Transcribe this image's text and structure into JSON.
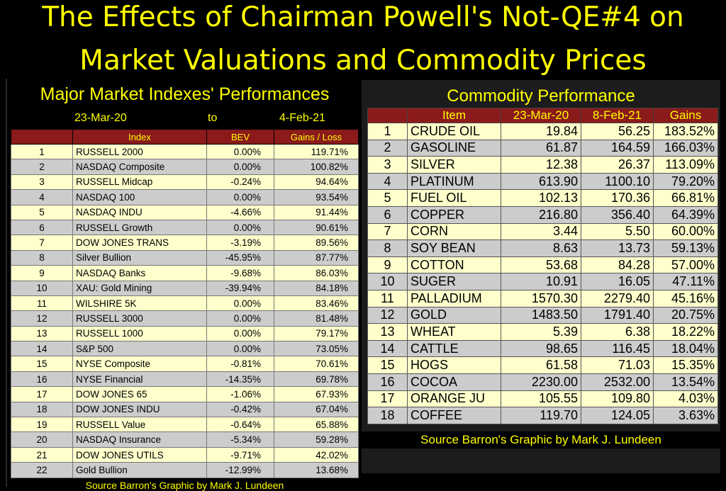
{
  "title": {
    "line1": "The Effects of Chairman Powell's Not-QE#4 on",
    "line2": "Market Valuations and Commodity Prices"
  },
  "left": {
    "heading": "Major Market Indexes' Performances",
    "date_from": "23-Mar-20",
    "date_to_word": "to",
    "date_to": "4-Feb-21",
    "source": "Source Barron's  Graphic by Mark J. Lundeen"
  },
  "right": {
    "heading": "Commodity Performance",
    "source": "Source Barron's  Graphic by Mark J. Lundeen"
  },
  "chart_data": [
    {
      "type": "table",
      "title": "Major Market Indexes' Performances",
      "columns": [
        "",
        "Index",
        "BEV",
        "Gains / Loss"
      ],
      "rows": [
        [
          "1",
          "RUSSELL 2000",
          "0.00%",
          "119.71%"
        ],
        [
          "2",
          "NASDAQ Composite",
          "0.00%",
          "100.82%"
        ],
        [
          "3",
          "RUSSELL Midcap",
          "-0.24%",
          "94.64%"
        ],
        [
          "4",
          "NASDAQ 100",
          "0.00%",
          "93.54%"
        ],
        [
          "5",
          "NASDAQ INDU",
          "-4.66%",
          "91.44%"
        ],
        [
          "6",
          "RUSSELL Growth",
          "0.00%",
          "90.61%"
        ],
        [
          "7",
          "DOW JONES TRANS",
          "-3.19%",
          "89.56%"
        ],
        [
          "8",
          "Silver Bullion",
          "-45.95%",
          "87.77%"
        ],
        [
          "9",
          "NASDAQ Banks",
          "-9.68%",
          "86.03%"
        ],
        [
          "10",
          "XAU: Gold Mining",
          "-39.94%",
          "84.18%"
        ],
        [
          "11",
          "WILSHIRE 5K",
          "0.00%",
          "83.46%"
        ],
        [
          "12",
          "RUSSELL 3000",
          "0.00%",
          "81.48%"
        ],
        [
          "13",
          "RUSSELL 1000",
          "0.00%",
          "79.17%"
        ],
        [
          "14",
          "S&P 500",
          "0.00%",
          "73.05%"
        ],
        [
          "15",
          "NYSE Composite",
          "-0.81%",
          "70.61%"
        ],
        [
          "16",
          "NYSE Financial",
          "-14.35%",
          "69.78%"
        ],
        [
          "17",
          "DOW JONES 65",
          "-1.06%",
          "67.93%"
        ],
        [
          "18",
          "DOW JONES INDU",
          "-0.42%",
          "67.04%"
        ],
        [
          "19",
          "RUSSELL Value",
          "-0.64%",
          "65.88%"
        ],
        [
          "20",
          "NASDAQ Insurance",
          "-5.34%",
          "59.28%"
        ],
        [
          "21",
          "DOW JONES UTILS",
          "-9.71%",
          "42.02%"
        ],
        [
          "22",
          "Gold Bullion",
          "-12.99%",
          "13.68%"
        ]
      ]
    },
    {
      "type": "table",
      "title": "Commodity Performance",
      "columns": [
        "",
        "Item",
        "23-Mar-20",
        "8-Feb-21",
        "Gains"
      ],
      "rows": [
        [
          "1",
          "CRUDE OIL",
          "19.84",
          "56.25",
          "183.52%"
        ],
        [
          "2",
          "GASOLINE",
          "61.87",
          "164.59",
          "166.03%"
        ],
        [
          "3",
          "SILVER",
          "12.38",
          "26.37",
          "113.09%"
        ],
        [
          "4",
          "PLATINUM",
          "613.90",
          "1100.10",
          "79.20%"
        ],
        [
          "5",
          "FUEL OIL",
          "102.13",
          "170.36",
          "66.81%"
        ],
        [
          "6",
          "COPPER",
          "216.80",
          "356.40",
          "64.39%"
        ],
        [
          "7",
          "CORN",
          "3.44",
          "5.50",
          "60.00%"
        ],
        [
          "8",
          "SOY BEAN",
          "8.63",
          "13.73",
          "59.13%"
        ],
        [
          "9",
          "COTTON",
          "53.68",
          "84.28",
          "57.00%"
        ],
        [
          "10",
          "SUGER",
          "10.91",
          "16.05",
          "47.11%"
        ],
        [
          "11",
          "PALLADIUM",
          "1570.30",
          "2279.40",
          "45.16%"
        ],
        [
          "12",
          "GOLD",
          "1483.50",
          "1791.40",
          "20.75%"
        ],
        [
          "13",
          "WHEAT",
          "5.39",
          "6.38",
          "18.22%"
        ],
        [
          "14",
          "CATTLE",
          "98.65",
          "116.45",
          "18.04%"
        ],
        [
          "15",
          "HOGS",
          "61.58",
          "71.03",
          "15.35%"
        ],
        [
          "16",
          "COCOA",
          "2230.00",
          "2532.00",
          "13.54%"
        ],
        [
          "17",
          "ORANGE JU",
          "105.55",
          "109.80",
          "4.03%"
        ],
        [
          "18",
          "COFFEE",
          "119.70",
          "124.05",
          "3.63%"
        ]
      ]
    }
  ]
}
